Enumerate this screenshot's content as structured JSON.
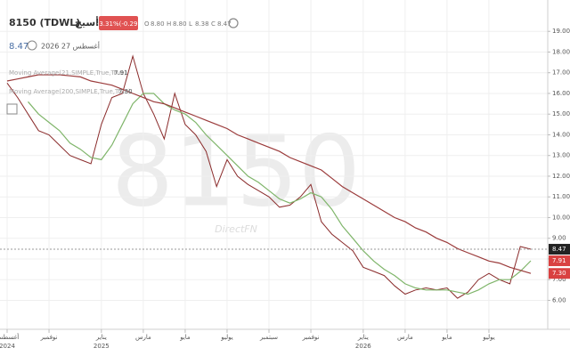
{
  "chart_data": {
    "type": "line",
    "symbol": "8150 (TDWL)",
    "name": "أسيج",
    "change": "-3.31%(-0.29)",
    "ohlc": [
      {
        "key": "O",
        "text": "8.80"
      },
      {
        "key": "H",
        "text": "8.80"
      },
      {
        "key": "L",
        "text": "8.38"
      },
      {
        "key": "C",
        "text": "8.47"
      }
    ],
    "price": "8.47",
    "date": "أغسطس 27 2026",
    "watermark": "8150",
    "brand": "DirectFN",
    "categories": [
      "أغسطس",
      null,
      null,
      null,
      "نوفمبر",
      null,
      null,
      null,
      null,
      "يناير",
      null,
      null,
      null,
      "مارس",
      null,
      null,
      null,
      "مايو",
      null,
      null,
      null,
      "يوليو",
      null,
      null,
      null,
      "سبتمبر",
      null,
      null,
      null,
      "نوفمبر",
      null,
      null,
      null,
      null,
      "يناير",
      null,
      null,
      null,
      "مارس",
      null,
      null,
      null,
      "مايو",
      null,
      null,
      null,
      "يوليو",
      null,
      null,
      null,
      null
    ],
    "category_years": [
      "2024",
      null,
      null,
      null,
      null,
      null,
      null,
      null,
      null,
      "2025",
      null,
      null,
      null,
      null,
      null,
      null,
      null,
      null,
      null,
      null,
      null,
      null,
      null,
      null,
      null,
      null,
      null,
      null,
      null,
      null,
      null,
      null,
      null,
      null,
      "2026",
      null,
      null,
      null,
      null,
      null,
      null,
      null,
      null,
      null,
      null,
      null,
      null,
      null,
      null,
      null,
      null
    ],
    "values": [
      16.5,
      15.8,
      15.0,
      14.2,
      14.0,
      13.5,
      13.0,
      12.8,
      12.6,
      14.5,
      15.8,
      16.0,
      17.8,
      16.0,
      15.0,
      13.8,
      16.0,
      14.5,
      14.0,
      13.2,
      11.5,
      12.8,
      12.0,
      11.6,
      11.3,
      11.0,
      10.5,
      10.6,
      11.0,
      11.6,
      9.8,
      9.2,
      8.8,
      8.4,
      7.6,
      7.4,
      7.2,
      6.7,
      6.3,
      6.5,
      6.6,
      6.5,
      6.6,
      6.1,
      6.4,
      7.0,
      7.3,
      7.0,
      6.8,
      8.6,
      8.47
    ],
    "color": "#8a2b2b",
    "series": [
      {
        "name": "Moving Average(21,SIMPLE,True,True)",
        "value_label": "7.91",
        "color": "#7fb56a",
        "values": [
          null,
          null,
          15.6,
          15.0,
          14.6,
          14.2,
          13.6,
          13.3,
          12.9,
          12.8,
          13.5,
          14.5,
          15.5,
          16.0,
          16.0,
          15.5,
          15.2,
          15.0,
          14.6,
          14.0,
          13.5,
          13.0,
          12.5,
          12.0,
          11.7,
          11.3,
          10.9,
          10.7,
          10.9,
          11.2,
          11.0,
          10.4,
          9.6,
          9.0,
          8.4,
          7.9,
          7.5,
          7.2,
          6.8,
          6.6,
          6.5,
          6.5,
          6.5,
          6.4,
          6.3,
          6.5,
          6.8,
          7.0,
          7.0,
          7.4,
          7.91
        ]
      },
      {
        "name": "Moving Average(200,SIMPLE,True,True)",
        "value_label": "7.30",
        "color": "#9b3b3b",
        "values": [
          16.6,
          16.7,
          16.8,
          16.9,
          16.9,
          16.9,
          16.85,
          16.8,
          16.6,
          16.5,
          16.4,
          16.2,
          16.0,
          15.8,
          15.6,
          15.5,
          15.3,
          15.1,
          14.9,
          14.7,
          14.5,
          14.3,
          14.0,
          13.8,
          13.6,
          13.4,
          13.2,
          12.9,
          12.7,
          12.5,
          12.3,
          11.9,
          11.5,
          11.2,
          10.9,
          10.6,
          10.3,
          10.0,
          9.8,
          9.5,
          9.3,
          9.0,
          8.8,
          8.5,
          8.3,
          8.1,
          7.9,
          7.8,
          7.6,
          7.45,
          7.3
        ]
      }
    ],
    "ylim": [
      4.6,
      20.3
    ],
    "yticks": [
      {
        "value": 6,
        "label": "6.00"
      },
      {
        "value": 7,
        "label": "7.00"
      },
      {
        "value": 8,
        "label": "8.00"
      },
      {
        "value": 9,
        "label": "9.00"
      },
      {
        "value": 10,
        "label": "10.00"
      },
      {
        "value": 11,
        "label": "11.00"
      },
      {
        "value": 12,
        "label": "12.00"
      },
      {
        "value": 13,
        "label": "13.00"
      },
      {
        "value": 14,
        "label": "14.00"
      },
      {
        "value": 15,
        "label": "15.00"
      },
      {
        "value": 16,
        "label": "16.00"
      },
      {
        "value": 17,
        "label": "17.00"
      },
      {
        "value": 18,
        "label": "18.00"
      },
      {
        "value": 19,
        "label": "19.00"
      }
    ],
    "grid": true
  }
}
